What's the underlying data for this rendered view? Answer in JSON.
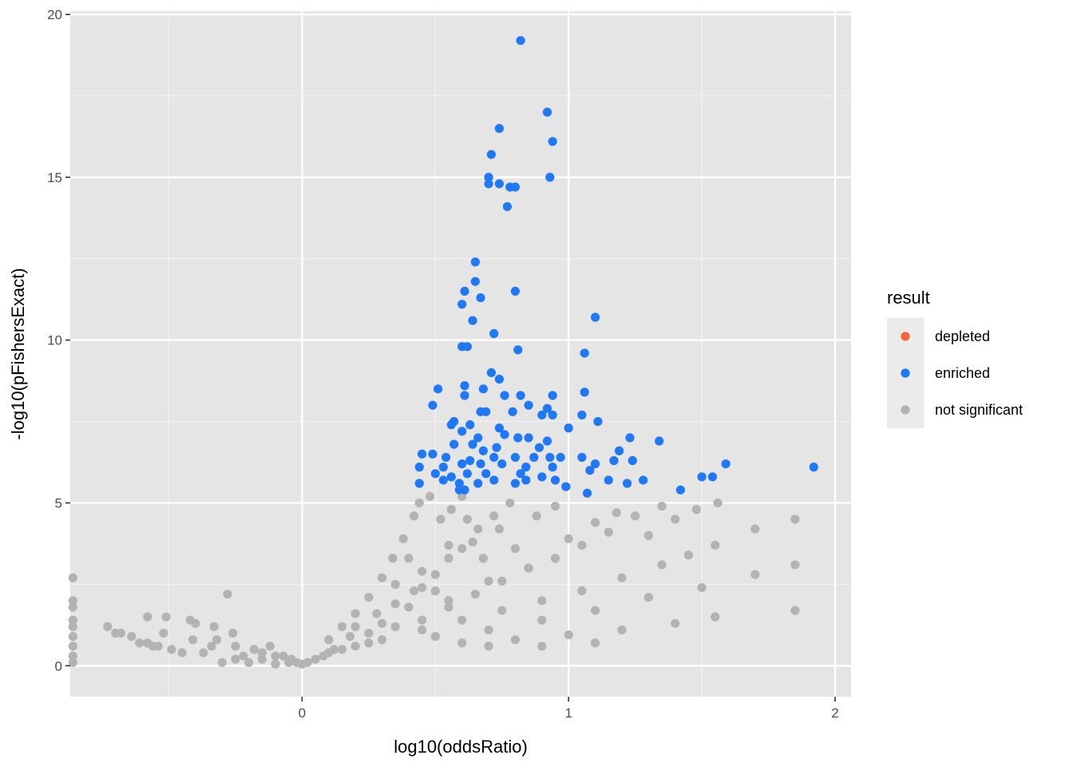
{
  "chart_data": {
    "type": "scatter",
    "xlabel": "log10(oddsRatio)",
    "ylabel": "-log10(pFishersExact)",
    "xlim": [
      -0.87,
      2.06
    ],
    "ylim": [
      -0.95,
      20.1
    ],
    "x_ticks": [
      0,
      1,
      2
    ],
    "x_tick_labels": [
      "0",
      "1",
      "2"
    ],
    "y_ticks": [
      0,
      5,
      10,
      15,
      20
    ],
    "y_tick_labels": [
      "0",
      "5",
      "10",
      "15",
      "20"
    ],
    "x_minor_ticks": [
      -0.5,
      0.5,
      1.5
    ],
    "y_minor_ticks": [
      2.5,
      7.5,
      12.5,
      17.5
    ],
    "grid": true,
    "background": "#e5e5e5",
    "legend": {
      "title": "result",
      "position": "right",
      "entries": [
        {
          "label": "depleted",
          "color": "#f8643c"
        },
        {
          "label": "enriched",
          "color": "#1f78f5"
        },
        {
          "label": "not significant",
          "color": "#b3b3b3"
        }
      ]
    },
    "series": [
      {
        "name": "enriched",
        "color": "#1f78f5",
        "points": [
          [
            0.82,
            19.2
          ],
          [
            0.92,
            17.0
          ],
          [
            0.94,
            16.1
          ],
          [
            0.74,
            16.5
          ],
          [
            0.71,
            15.7
          ],
          [
            0.7,
            15.0
          ],
          [
            0.93,
            15.0
          ],
          [
            0.7,
            14.8
          ],
          [
            0.74,
            14.8
          ],
          [
            0.78,
            14.7
          ],
          [
            0.8,
            14.7
          ],
          [
            0.77,
            14.1
          ],
          [
            0.65,
            12.4
          ],
          [
            0.65,
            11.8
          ],
          [
            0.61,
            11.5
          ],
          [
            0.6,
            11.1
          ],
          [
            0.67,
            11.3
          ],
          [
            0.8,
            11.5
          ],
          [
            1.1,
            10.7
          ],
          [
            0.64,
            10.6
          ],
          [
            0.72,
            10.2
          ],
          [
            0.6,
            9.8
          ],
          [
            0.62,
            9.8
          ],
          [
            0.81,
            9.7
          ],
          [
            1.06,
            9.6
          ],
          [
            0.71,
            9.0
          ],
          [
            0.74,
            8.8
          ],
          [
            0.61,
            8.6
          ],
          [
            0.68,
            8.5
          ],
          [
            0.51,
            8.5
          ],
          [
            0.61,
            8.3
          ],
          [
            0.76,
            8.3
          ],
          [
            0.82,
            8.3
          ],
          [
            0.85,
            8.0
          ],
          [
            0.94,
            8.3
          ],
          [
            1.06,
            8.4
          ],
          [
            0.49,
            8.0
          ],
          [
            0.67,
            7.8
          ],
          [
            0.69,
            7.8
          ],
          [
            0.79,
            7.8
          ],
          [
            0.9,
            7.7
          ],
          [
            0.92,
            7.9
          ],
          [
            0.94,
            7.7
          ],
          [
            1.05,
            7.7
          ],
          [
            1.11,
            7.5
          ],
          [
            0.57,
            7.5
          ],
          [
            0.56,
            7.4
          ],
          [
            0.63,
            7.4
          ],
          [
            0.74,
            7.3
          ],
          [
            1.0,
            7.3
          ],
          [
            0.6,
            7.2
          ],
          [
            0.66,
            7.0
          ],
          [
            0.76,
            7.1
          ],
          [
            0.81,
            7.0
          ],
          [
            0.85,
            7.0
          ],
          [
            0.92,
            6.9
          ],
          [
            1.23,
            7.0
          ],
          [
            1.34,
            6.9
          ],
          [
            0.57,
            6.8
          ],
          [
            0.64,
            6.8
          ],
          [
            0.68,
            6.6
          ],
          [
            0.73,
            6.7
          ],
          [
            0.89,
            6.7
          ],
          [
            1.19,
            6.6
          ],
          [
            0.45,
            6.5
          ],
          [
            0.49,
            6.5
          ],
          [
            0.54,
            6.4
          ],
          [
            0.63,
            6.3
          ],
          [
            0.72,
            6.4
          ],
          [
            0.8,
            6.4
          ],
          [
            0.87,
            6.4
          ],
          [
            0.93,
            6.4
          ],
          [
            0.97,
            6.4
          ],
          [
            1.05,
            6.4
          ],
          [
            1.17,
            6.3
          ],
          [
            1.24,
            6.3
          ],
          [
            0.44,
            6.1
          ],
          [
            0.53,
            6.1
          ],
          [
            0.6,
            6.2
          ],
          [
            0.67,
            6.2
          ],
          [
            0.75,
            6.2
          ],
          [
            0.84,
            6.1
          ],
          [
            0.94,
            6.1
          ],
          [
            1.1,
            6.2
          ],
          [
            1.59,
            6.2
          ],
          [
            1.92,
            6.1
          ],
          [
            0.5,
            5.9
          ],
          [
            0.56,
            5.8
          ],
          [
            0.62,
            5.9
          ],
          [
            0.69,
            5.9
          ],
          [
            0.82,
            5.9
          ],
          [
            0.9,
            5.8
          ],
          [
            1.08,
            6.0
          ],
          [
            1.5,
            5.8
          ],
          [
            1.54,
            5.8
          ],
          [
            0.44,
            5.6
          ],
          [
            0.53,
            5.7
          ],
          [
            0.59,
            5.6
          ],
          [
            0.66,
            5.6
          ],
          [
            0.72,
            5.7
          ],
          [
            0.84,
            5.7
          ],
          [
            0.95,
            5.7
          ],
          [
            1.15,
            5.7
          ],
          [
            1.22,
            5.6
          ],
          [
            1.28,
            5.7
          ],
          [
            0.59,
            5.4
          ],
          [
            0.61,
            5.4
          ],
          [
            0.8,
            5.6
          ],
          [
            0.99,
            5.5
          ],
          [
            1.07,
            5.3
          ],
          [
            1.42,
            5.4
          ]
        ]
      },
      {
        "name": "not significant",
        "color": "#b3b3b3",
        "points": [
          [
            -0.86,
            2.7
          ],
          [
            -0.86,
            2.0
          ],
          [
            -0.86,
            1.8
          ],
          [
            -0.86,
            1.4
          ],
          [
            -0.86,
            1.2
          ],
          [
            -0.86,
            0.9
          ],
          [
            -0.86,
            0.6
          ],
          [
            -0.86,
            0.3
          ],
          [
            -0.86,
            0.1
          ],
          [
            -0.73,
            1.2
          ],
          [
            -0.7,
            1.0
          ],
          [
            -0.68,
            1.0
          ],
          [
            -0.64,
            0.9
          ],
          [
            -0.61,
            0.7
          ],
          [
            -0.58,
            0.7
          ],
          [
            -0.58,
            1.5
          ],
          [
            -0.56,
            0.6
          ],
          [
            -0.54,
            0.6
          ],
          [
            -0.52,
            1.0
          ],
          [
            -0.51,
            1.5
          ],
          [
            -0.49,
            0.5
          ],
          [
            -0.45,
            0.4
          ],
          [
            -0.42,
            1.4
          ],
          [
            -0.4,
            1.3
          ],
          [
            -0.41,
            0.8
          ],
          [
            -0.37,
            0.4
          ],
          [
            -0.34,
            0.6
          ],
          [
            -0.33,
            1.2
          ],
          [
            -0.32,
            0.8
          ],
          [
            -0.28,
            2.2
          ],
          [
            -0.26,
            1.0
          ],
          [
            -0.25,
            0.6
          ],
          [
            -0.22,
            0.3
          ],
          [
            -0.18,
            0.5
          ],
          [
            -0.15,
            0.4
          ],
          [
            -0.12,
            0.6
          ],
          [
            -0.1,
            0.3
          ],
          [
            -0.07,
            0.3
          ],
          [
            -0.04,
            0.2
          ],
          [
            -0.02,
            0.1
          ],
          [
            -0.3,
            0.1
          ],
          [
            -0.2,
            0.1
          ],
          [
            -0.1,
            0.05
          ],
          [
            0.0,
            0.05
          ],
          [
            0.05,
            0.2
          ],
          [
            0.1,
            0.4
          ],
          [
            0.15,
            0.5
          ],
          [
            0.2,
            0.6
          ],
          [
            0.25,
            0.7
          ],
          [
            0.3,
            0.8
          ],
          [
            0.1,
            0.8
          ],
          [
            0.15,
            1.2
          ],
          [
            0.2,
            1.6
          ],
          [
            0.25,
            2.1
          ],
          [
            0.3,
            2.7
          ],
          [
            0.34,
            3.3
          ],
          [
            0.38,
            3.9
          ],
          [
            0.42,
            4.6
          ],
          [
            0.44,
            5.0
          ],
          [
            0.48,
            5.2
          ],
          [
            0.2,
            1.2
          ],
          [
            0.28,
            1.6
          ],
          [
            0.35,
            1.9
          ],
          [
            0.42,
            2.3
          ],
          [
            0.5,
            2.8
          ],
          [
            0.55,
            3.3
          ],
          [
            0.6,
            3.6
          ],
          [
            0.66,
            4.2
          ],
          [
            0.72,
            4.6
          ],
          [
            0.78,
            5.0
          ],
          [
            0.35,
            1.2
          ],
          [
            0.45,
            1.4
          ],
          [
            0.55,
            1.8
          ],
          [
            0.65,
            2.2
          ],
          [
            0.75,
            2.6
          ],
          [
            0.85,
            3.0
          ],
          [
            0.95,
            3.3
          ],
          [
            1.05,
            3.7
          ],
          [
            1.15,
            4.1
          ],
          [
            1.25,
            4.6
          ],
          [
            1.35,
            4.9
          ],
          [
            0.45,
            1.1
          ],
          [
            0.6,
            1.4
          ],
          [
            0.75,
            1.7
          ],
          [
            0.9,
            2.0
          ],
          [
            1.05,
            2.3
          ],
          [
            1.2,
            2.7
          ],
          [
            1.35,
            3.1
          ],
          [
            1.45,
            3.4
          ],
          [
            1.55,
            3.7
          ],
          [
            1.7,
            4.2
          ],
          [
            1.85,
            4.5
          ],
          [
            0.5,
            0.9
          ],
          [
            0.7,
            1.1
          ],
          [
            0.9,
            1.4
          ],
          [
            1.1,
            1.7
          ],
          [
            1.3,
            2.1
          ],
          [
            1.5,
            2.4
          ],
          [
            1.7,
            2.8
          ],
          [
            1.85,
            3.1
          ],
          [
            0.6,
            0.7
          ],
          [
            0.8,
            0.8
          ],
          [
            1.0,
            0.95
          ],
          [
            1.2,
            1.1
          ],
          [
            1.4,
            1.3
          ],
          [
            1.55,
            1.5
          ],
          [
            1.85,
            1.7
          ],
          [
            0.7,
            0.6
          ],
          [
            0.9,
            0.6
          ],
          [
            1.1,
            0.7
          ],
          [
            0.4,
            3.3
          ],
          [
            0.45,
            2.9
          ],
          [
            0.5,
            2.3
          ],
          [
            0.55,
            2.0
          ],
          [
            0.56,
            4.8
          ],
          [
            0.62,
            4.5
          ],
          [
            0.64,
            3.8
          ],
          [
            0.68,
            3.3
          ],
          [
            0.7,
            2.6
          ],
          [
            0.74,
            4.2
          ],
          [
            0.8,
            3.6
          ],
          [
            0.88,
            4.6
          ],
          [
            0.95,
            4.9
          ],
          [
            1.0,
            3.9
          ],
          [
            1.1,
            4.4
          ],
          [
            1.18,
            4.7
          ],
          [
            1.3,
            4.0
          ],
          [
            1.4,
            4.5
          ],
          [
            1.48,
            4.8
          ],
          [
            1.56,
            5.0
          ],
          [
            0.6,
            5.2
          ],
          [
            0.52,
            4.5
          ],
          [
            0.55,
            3.7
          ],
          [
            0.45,
            2.4
          ],
          [
            0.35,
            2.5
          ],
          [
            0.3,
            1.3
          ],
          [
            0.25,
            1.0
          ],
          [
            0.4,
            1.8
          ],
          [
            0.18,
            0.9
          ],
          [
            0.12,
            0.5
          ],
          [
            0.08,
            0.3
          ],
          [
            0.02,
            0.1
          ],
          [
            -0.05,
            0.1
          ],
          [
            -0.15,
            0.2
          ],
          [
            -0.25,
            0.2
          ]
        ]
      }
    ]
  }
}
